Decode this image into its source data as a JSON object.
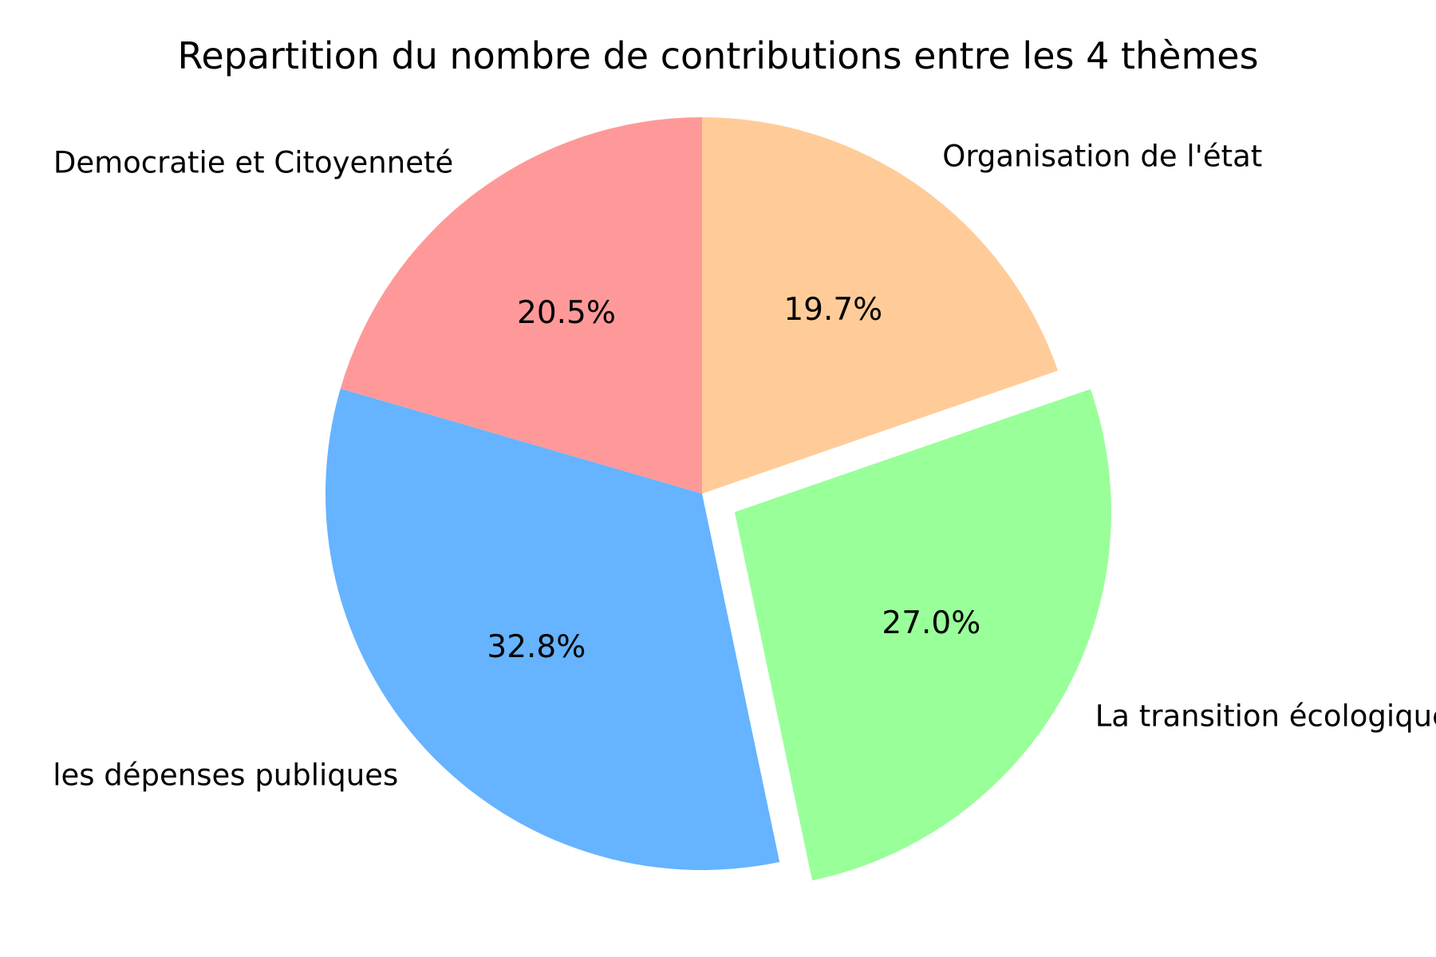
{
  "chart_data": {
    "type": "pie",
    "title": "Repartition du nombre de contributions entre les 4 thèmes",
    "start_angle_deg": 90,
    "direction": "counterclockwise",
    "legend": "none",
    "slices": [
      {
        "label": "Democratie et Citoyenneté",
        "percent": 20.5,
        "percent_label": "20.5%",
        "color": "#ff9999",
        "exploded": false
      },
      {
        "label": "les dépenses publiques",
        "percent": 32.8,
        "percent_label": "32.8%",
        "color": "#66b3ff",
        "exploded": false
      },
      {
        "label": "La transition écologique",
        "percent": 27.0,
        "percent_label": "27.0%",
        "color": "#99ff99",
        "exploded": true
      },
      {
        "label": "Organisation de l'état",
        "percent": 19.7,
        "percent_label": "19.7%",
        "color": "#ffcc99",
        "exploded": false
      }
    ]
  }
}
